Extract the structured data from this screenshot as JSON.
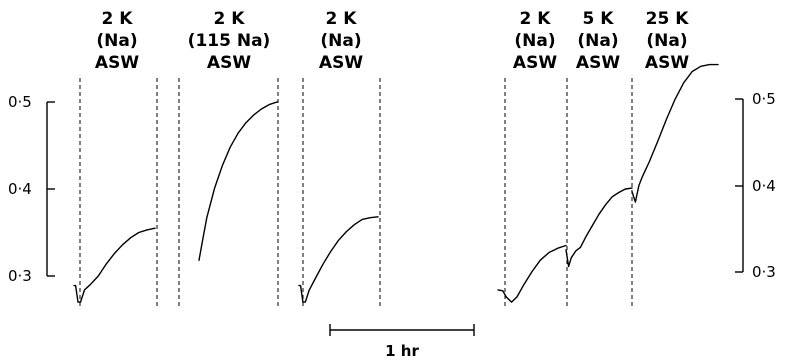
{
  "chart_data": {
    "type": "line",
    "y_ticks": [
      "0·5",
      "0·4",
      "0·3"
    ],
    "y_tick_values": [
      0.5,
      0.4,
      0.3
    ],
    "ylim": [
      0.3,
      0.5
    ],
    "scale_bar_label": "1 hr",
    "segments": [
      {
        "label": [
          "2 K",
          "(Na)",
          "ASW"
        ],
        "points": [
          [
            0.0,
            0.289
          ],
          [
            0.02,
            0.289
          ],
          [
            0.05,
            0.27
          ],
          [
            0.08,
            0.27
          ],
          [
            0.13,
            0.284
          ],
          [
            0.2,
            0.29
          ],
          [
            0.3,
            0.3
          ],
          [
            0.4,
            0.314
          ],
          [
            0.5,
            0.326
          ],
          [
            0.6,
            0.336
          ],
          [
            0.7,
            0.344
          ],
          [
            0.8,
            0.35
          ],
          [
            0.9,
            0.353
          ],
          [
            1.0,
            0.355
          ]
        ]
      },
      {
        "label": [
          "2 K",
          "(115 Na)",
          "ASW"
        ],
        "points": [
          [
            0.0,
            0.318
          ],
          [
            0.05,
            0.343
          ],
          [
            0.1,
            0.367
          ],
          [
            0.2,
            0.401
          ],
          [
            0.3,
            0.427
          ],
          [
            0.4,
            0.448
          ],
          [
            0.5,
            0.464
          ],
          [
            0.6,
            0.476
          ],
          [
            0.7,
            0.485
          ],
          [
            0.8,
            0.492
          ],
          [
            0.9,
            0.497
          ],
          [
            1.0,
            0.5
          ]
        ]
      },
      {
        "label": [
          "2 K",
          "(Na)",
          "ASW"
        ],
        "points": [
          [
            0.0,
            0.289
          ],
          [
            0.02,
            0.289
          ],
          [
            0.05,
            0.27
          ],
          [
            0.08,
            0.27
          ],
          [
            0.13,
            0.284
          ],
          [
            0.2,
            0.296
          ],
          [
            0.3,
            0.313
          ],
          [
            0.4,
            0.328
          ],
          [
            0.5,
            0.341
          ],
          [
            0.6,
            0.351
          ],
          [
            0.7,
            0.359
          ],
          [
            0.8,
            0.365
          ],
          [
            0.9,
            0.367
          ],
          [
            1.0,
            0.368
          ]
        ]
      },
      {
        "label": [
          "2 K",
          "(Na)",
          "ASW"
        ],
        "points": [
          [
            0.0,
            0.284
          ],
          [
            0.07,
            0.283
          ],
          [
            0.12,
            0.276
          ],
          [
            0.2,
            0.27
          ],
          [
            0.28,
            0.276
          ],
          [
            0.38,
            0.29
          ],
          [
            0.5,
            0.305
          ],
          [
            0.62,
            0.318
          ],
          [
            0.75,
            0.327
          ],
          [
            0.88,
            0.332
          ],
          [
            1.0,
            0.335
          ]
        ]
      },
      {
        "label": [
          "5 K",
          "(Na)",
          "ASW"
        ],
        "points": [
          [
            0.0,
            0.33
          ],
          [
            0.04,
            0.311
          ],
          [
            0.08,
            0.321
          ],
          [
            0.15,
            0.329
          ],
          [
            0.22,
            0.333
          ],
          [
            0.3,
            0.345
          ],
          [
            0.4,
            0.358
          ],
          [
            0.5,
            0.371
          ],
          [
            0.6,
            0.382
          ],
          [
            0.7,
            0.391
          ],
          [
            0.8,
            0.396
          ],
          [
            0.9,
            0.4
          ],
          [
            1.0,
            0.401
          ]
        ]
      },
      {
        "label": [
          "25 K",
          "(Na)",
          "ASW"
        ],
        "points": [
          [
            0.0,
            0.397
          ],
          [
            0.04,
            0.385
          ],
          [
            0.08,
            0.404
          ],
          [
            0.12,
            0.414
          ],
          [
            0.2,
            0.431
          ],
          [
            0.3,
            0.455
          ],
          [
            0.4,
            0.48
          ],
          [
            0.5,
            0.503
          ],
          [
            0.6,
            0.522
          ],
          [
            0.7,
            0.535
          ],
          [
            0.8,
            0.541
          ],
          [
            0.9,
            0.543
          ],
          [
            1.0,
            0.543
          ]
        ]
      }
    ]
  }
}
